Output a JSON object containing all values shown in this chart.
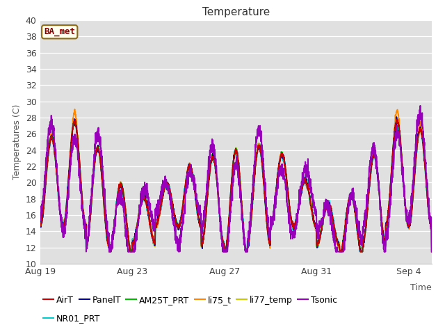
{
  "title": "Temperature",
  "ylabel": "Temperatures (C)",
  "xlabel": "Time",
  "ylim": [
    10,
    40
  ],
  "xlim_days": [
    0,
    17
  ],
  "yticks": [
    10,
    12,
    14,
    16,
    18,
    20,
    22,
    24,
    26,
    28,
    30,
    32,
    34,
    36,
    38,
    40
  ],
  "xtick_labels": [
    "Aug 19",
    "Aug 23",
    "Aug 27",
    "Aug 31",
    "Sep 4"
  ],
  "xtick_positions": [
    0,
    4,
    8,
    12,
    16
  ],
  "legend_entries": [
    {
      "label": "AirT",
      "color": "#cc0000"
    },
    {
      "label": "PanelT",
      "color": "#000099"
    },
    {
      "label": "AM25T_PRT",
      "color": "#00bb00"
    },
    {
      "label": "li75_t",
      "color": "#ff8800"
    },
    {
      "label": "li77_temp",
      "color": "#cccc00"
    },
    {
      "label": "Tsonic",
      "color": "#9900bb"
    },
    {
      "label": "NR01_PRT",
      "color": "#00cccc"
    }
  ],
  "annotation_label": "BA_met",
  "plot_bg_color": "#e0e0e0",
  "grid_color": "#ffffff",
  "title_fontsize": 11,
  "label_fontsize": 9,
  "tick_fontsize": 9,
  "legend_fontsize": 9,
  "line_width": 1.2
}
